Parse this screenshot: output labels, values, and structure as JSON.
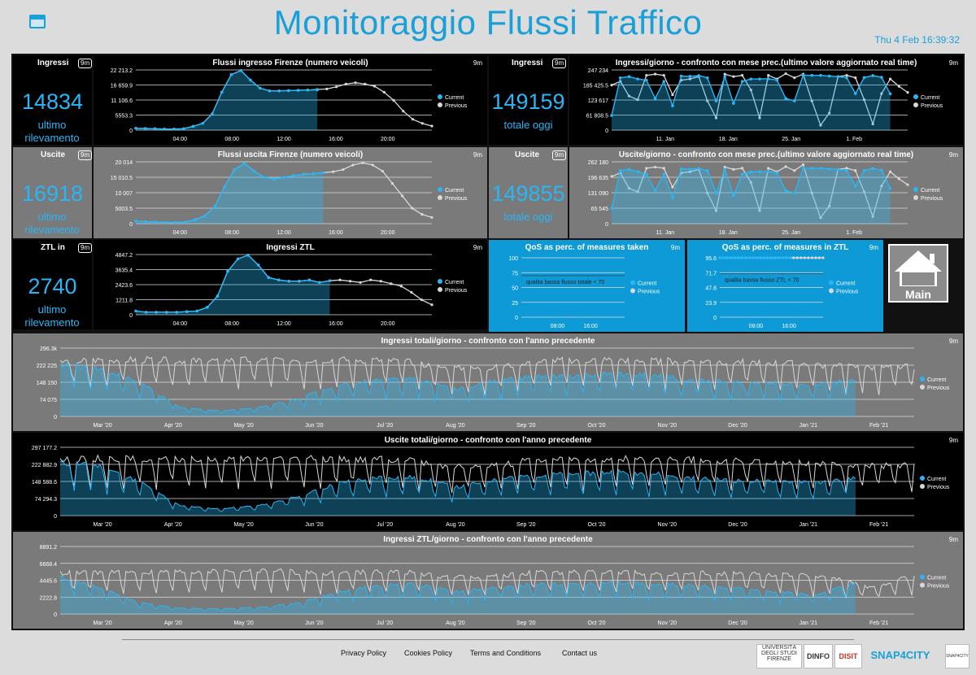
{
  "header": {
    "title": "Monitoraggio Flussi Traffico",
    "datetime": "Thu 4 Feb 16:39:32"
  },
  "badge": "9m",
  "legend": {
    "current": "Current",
    "previous": "Previous"
  },
  "colors": {
    "current": "#29b6f6",
    "previous": "#d8d8d8",
    "accent": "#1aa0d8"
  },
  "kpis": [
    {
      "id": "ingressi",
      "title": "Ingressi",
      "value": "14834",
      "sub": "ultimo rilevamento"
    },
    {
      "id": "ingressi-giorno",
      "title": "Ingressi",
      "value": "149159",
      "sub": "totale oggi"
    },
    {
      "id": "uscite",
      "title": "Uscite",
      "value": "16918",
      "sub": "ultimo rilevamento"
    },
    {
      "id": "uscite-giorno",
      "title": "Uscite",
      "value": "149855",
      "sub": "totale oggi"
    },
    {
      "id": "ztl",
      "title": "ZTL in",
      "value": "2740",
      "sub": "ultimo rilevamento"
    }
  ],
  "home": {
    "label": "Main"
  },
  "footer": {
    "links": [
      "Privacy Policy",
      "Cookies Policy",
      "Terms and Conditions",
      "Contact us"
    ],
    "logos": [
      "UNIVERSITÀ DEGLI STUDI FIRENZE",
      "DINFO",
      "DISIT",
      "SNAP4CITY",
      "SNAP4CITY"
    ]
  },
  "chart_data": [
    {
      "id": "c1",
      "type": "area",
      "title": "Flussi ingresso Firenze (numero veicoli)",
      "ylim": [
        0,
        22213.2
      ],
      "yticks": [
        "22 213.2",
        "16 659.9",
        "11 106.6",
        "5553.3",
        "0"
      ],
      "xticks": [
        "04:00",
        "08:00",
        "12:00",
        "16:00",
        "20:00"
      ],
      "current": [
        700,
        600,
        500,
        400,
        400,
        500,
        1400,
        2500,
        6000,
        14000,
        20500,
        22000,
        18500,
        15500,
        14500,
        14500,
        14600,
        14700,
        14800,
        14834
      ],
      "previous": [
        700,
        600,
        500,
        400,
        400,
        500,
        1400,
        2500,
        6000,
        14000,
        20500,
        22000,
        18500,
        15500,
        14500,
        14500,
        14600,
        14700,
        14800,
        15000,
        15200,
        16000,
        17000,
        17500,
        17000,
        16200,
        14000,
        11000,
        7000,
        4000,
        2500,
        1500
      ]
    },
    {
      "id": "c2",
      "type": "area",
      "title": "Ingressi/giorno - confronto con mese prec.(ultimo valore aggiornato real time)",
      "ylim": [
        0,
        247234
      ],
      "yticks": [
        "247 234",
        "185 425.5",
        "123 617",
        "61 808.5",
        "0"
      ],
      "xticks": [
        "11. Jan",
        "18. Jan",
        "25. Jan",
        "1. Feb"
      ],
      "current": [
        60000,
        215000,
        220000,
        210000,
        205000,
        130000,
        200000,
        100000,
        222000,
        221000,
        224000,
        215000,
        120000,
        220000,
        110000,
        200000,
        210000,
        210000,
        211000,
        205000,
        130000,
        120000,
        226000,
        225000,
        225000,
        222000,
        220000,
        215000,
        150000,
        216000,
        224000,
        217000,
        149159
      ],
      "previous": [
        185000,
        200000,
        140000,
        125000,
        225000,
        230000,
        225000,
        145000,
        205000,
        210000,
        220000,
        120000,
        50000,
        230000,
        220000,
        225000,
        165000,
        50000,
        225000,
        210000,
        232000,
        215000,
        230000,
        120000,
        20000,
        70000,
        220000,
        225000,
        215000,
        125000,
        25000,
        150000,
        210000,
        180000,
        155000
      ]
    },
    {
      "id": "c3",
      "type": "area",
      "title": "Flussi uscita Firenze (numero veicoli)",
      "ylim": [
        0,
        20014
      ],
      "yticks": [
        "20 014",
        "15 010.5",
        "10 007",
        "5003.5",
        "0"
      ],
      "xticks": [
        "04:00",
        "08:00",
        "12:00",
        "16:00",
        "20:00"
      ],
      "current": [
        800,
        600,
        500,
        400,
        400,
        500,
        1300,
        2500,
        5500,
        12000,
        17500,
        19500,
        17000,
        15000,
        14500,
        15000,
        15500,
        16000,
        16200,
        16500
      ],
      "previous": [
        800,
        600,
        500,
        400,
        400,
        500,
        1300,
        2500,
        5500,
        12000,
        17500,
        19500,
        17000,
        15000,
        14500,
        15000,
        15500,
        16000,
        16200,
        16500,
        16800,
        17500,
        19000,
        19700,
        19000,
        17000,
        13000,
        9000,
        5000,
        3000,
        2000
      ]
    },
    {
      "id": "c4",
      "type": "area",
      "title": "Uscite/giorno - confronto con mese prec.(ultimo valore aggiornato real time)",
      "ylim": [
        0,
        262180
      ],
      "yticks": [
        "262 180",
        "196 635",
        "131 090",
        "65 545",
        "0"
      ],
      "xticks": [
        "11. Jan",
        "18. Jan",
        "25. Jan",
        "1. Feb"
      ],
      "current": [
        65000,
        225000,
        230000,
        220000,
        210000,
        140000,
        210000,
        110000,
        232000,
        231000,
        234000,
        225000,
        130000,
        230000,
        120000,
        210000,
        220000,
        220000,
        221000,
        215000,
        140000,
        130000,
        236000,
        235000,
        235000,
        232000,
        230000,
        225000,
        160000,
        226000,
        234000,
        227000,
        149855
      ],
      "previous": [
        200000,
        215000,
        150000,
        135000,
        235000,
        240000,
        235000,
        155000,
        215000,
        220000,
        230000,
        130000,
        55000,
        240000,
        230000,
        235000,
        175000,
        55000,
        235000,
        220000,
        242000,
        225000,
        250000,
        130000,
        25000,
        75000,
        230000,
        235000,
        225000,
        135000,
        30000,
        160000,
        220000,
        190000,
        165000
      ]
    },
    {
      "id": "c5",
      "type": "area",
      "title": "Ingressi ZTL",
      "ylim": [
        0,
        4847.2
      ],
      "yticks": [
        "4847.2",
        "3635.4",
        "2423.6",
        "1211.8",
        "0"
      ],
      "xticks": [
        "04:00",
        "08:00",
        "12:00",
        "16:00",
        "20:00"
      ],
      "current": [
        300,
        200,
        200,
        200,
        200,
        250,
        300,
        600,
        1500,
        3500,
        4500,
        4800,
        4000,
        3000,
        2800,
        2700,
        2700,
        2800,
        2600,
        2740
      ],
      "previous": [
        300,
        200,
        200,
        200,
        200,
        250,
        300,
        600,
        1500,
        3500,
        4500,
        4800,
        4000,
        3000,
        2800,
        2700,
        2700,
        2800,
        2600,
        2740,
        2800,
        2700,
        2600,
        2800,
        2700,
        2500,
        2300,
        1800,
        1200,
        800
      ]
    },
    {
      "id": "c6",
      "type": "line",
      "title": "QoS as perc. of measures taken",
      "ylim": [
        0,
        100
      ],
      "yticks": [
        "100",
        "75",
        "50",
        "25",
        "0"
      ],
      "xticks": [
        "08:00",
        "16:00"
      ],
      "threshold": 70,
      "threshold_label": "qualita bassa flusso totale < 70"
    },
    {
      "id": "c7",
      "type": "line",
      "title": "QoS as perc. of measures in ZTL",
      "ylim": [
        0,
        95.6
      ],
      "yticks": [
        "95.6",
        "71.7",
        "47.8",
        "23.9",
        "0"
      ],
      "xticks": [
        "08:00",
        "16:00"
      ],
      "threshold": 70,
      "threshold_label": "qualita bassa flusso ZTL < 70",
      "current": [
        95.6,
        95.6,
        95.6,
        95.6,
        95.6,
        95.6,
        95.6,
        95.6,
        95.6,
        95.6,
        95.6,
        95.6,
        95.6,
        95.6,
        95.6,
        95.6,
        95.6,
        95.6,
        95.6,
        95.6
      ],
      "previous": [
        95.6,
        95.6,
        95.6,
        95.6,
        95.6,
        95.6,
        95.6,
        95.6,
        95.6,
        95.6,
        95.6,
        95.6,
        95.6,
        95.6,
        95.6,
        95.6,
        95.6,
        95.6,
        95.6,
        95.6,
        95.6,
        95.6,
        95.6,
        95.6,
        95.6,
        95.6,
        95.6,
        95.6,
        95.6
      ]
    },
    {
      "id": "c8",
      "type": "area",
      "title": "Ingressi totali/giorno - confronto con l'anno precedente",
      "ylim": [
        0,
        296300
      ],
      "yticks": [
        "296.3k",
        "222 225",
        "148 150",
        "74 075",
        "0"
      ],
      "xticks": [
        "Mar '20",
        "Apr '20",
        "May '20",
        "Jun '20",
        "Jul '20",
        "Aug '20",
        "Sep '20",
        "Oct '20",
        "Nov '20",
        "Dec '20",
        "Jan '21",
        "Feb '21"
      ],
      "gen": {
        "cur": [
          230000,
          215000,
          150000,
          40000,
          25000,
          40000,
          80000,
          140000,
          165000,
          165000,
          120000,
          160000,
          175000,
          180000,
          190000,
          180000,
          160000,
          150000,
          150000,
          140000,
          160000
        ],
        "prev": [
          240000,
          250000,
          250000,
          245000,
          248000,
          250000,
          250000,
          250000,
          245000,
          215000,
          210000,
          240000,
          250000,
          250000,
          245000,
          245000,
          240000,
          235000,
          225000,
          215000,
          220000
        ]
      }
    },
    {
      "id": "c9",
      "type": "area",
      "title": "Uscite totali/giorno - confronto con l'anno precedente",
      "ylim": [
        0,
        297177.2
      ],
      "yticks": [
        "297 177.2",
        "222 882.9",
        "148 588.6",
        "74 294.3",
        "0"
      ],
      "xticks": [
        "Mar '20",
        "Apr '20",
        "May '20",
        "Jun '20",
        "Jul '20",
        "Aug '20",
        "Sep '20",
        "Oct '20",
        "Nov '20",
        "Dec '20",
        "Jan '21",
        "Feb '21"
      ],
      "gen": {
        "cur": [
          235000,
          220000,
          150000,
          45000,
          30000,
          45000,
          85000,
          145000,
          170000,
          170000,
          125000,
          165000,
          180000,
          185000,
          195000,
          185000,
          165000,
          155000,
          155000,
          145000,
          165000
        ],
        "prev": [
          245000,
          255000,
          250000,
          248000,
          250000,
          252000,
          252000,
          252000,
          248000,
          220000,
          215000,
          245000,
          252000,
          252000,
          248000,
          248000,
          242000,
          238000,
          230000,
          220000,
          225000
        ]
      }
    },
    {
      "id": "c10",
      "type": "area",
      "title": "Ingressi ZTL/giorno - confronto con l'anno precedente",
      "ylim": [
        0,
        8891.2
      ],
      "yticks": [
        "8891.2",
        "6668.4",
        "4445.6",
        "2222.8",
        "0"
      ],
      "xticks": [
        "Mar '20",
        "Apr '20",
        "May '20",
        "Jun '20",
        "Jul '20",
        "Aug '20",
        "Sep '20",
        "Oct '20",
        "Nov '20",
        "Dec '20",
        "Jan '21",
        "Feb '21"
      ],
      "gen": {
        "cur": [
          5000,
          3500,
          1500,
          800,
          700,
          900,
          1500,
          3000,
          3800,
          4000,
          3000,
          3600,
          4000,
          4000,
          4200,
          4000,
          3800,
          3500,
          3000,
          2500,
          4200
        ],
        "prev": [
          5500,
          5600,
          5600,
          5700,
          5800,
          5800,
          5500,
          5600,
          5700,
          5000,
          5000,
          5500,
          5600,
          5600,
          5500,
          5500,
          5400,
          5300,
          5000,
          3500,
          5200
        ]
      }
    }
  ]
}
